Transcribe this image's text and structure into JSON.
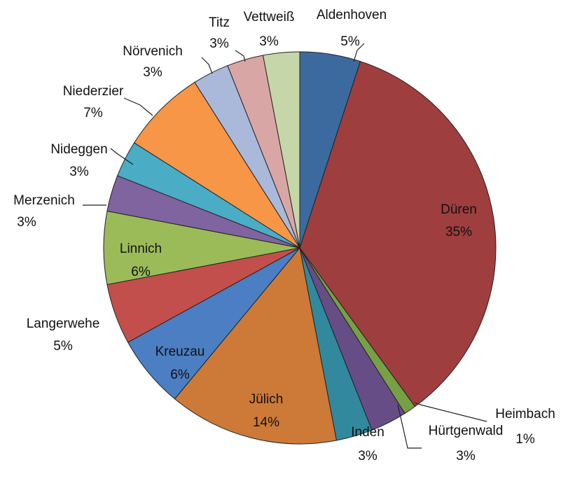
{
  "chart_data": {
    "type": "pie",
    "categories": [
      "Aldenhoven",
      "Düren",
      "Heimbach",
      "Hürtgenwald",
      "Inden",
      "Jülich",
      "Kreuzau",
      "Langerwehe",
      "Linnich",
      "Merzenich",
      "Nideggen",
      "Niederzier",
      "Nörvenich",
      "Titz",
      "Vettweiß"
    ],
    "values": [
      5,
      35,
      1,
      3,
      3,
      14,
      6,
      5,
      6,
      3,
      3,
      7,
      3,
      3,
      3
    ],
    "value_labels": [
      "5%",
      "35%",
      "1%",
      "3%",
      "3%",
      "14%",
      "6%",
      "5%",
      "6%",
      "3%",
      "3%",
      "7%",
      "3%",
      "3%",
      "3%"
    ],
    "colors": [
      "#3d6a9e",
      "#9e3e3e",
      "#77a044",
      "#674d86",
      "#32899e",
      "#cd7a38",
      "#4b7ec2",
      "#c34f4d",
      "#9bbb59",
      "#7f64a0",
      "#4bacc6",
      "#f79646",
      "#aab9da",
      "#d9a6a6",
      "#c5d6a8"
    ]
  }
}
